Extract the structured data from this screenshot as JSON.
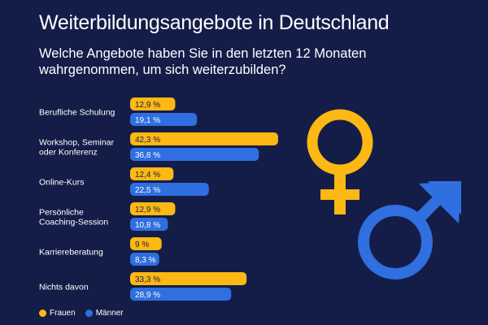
{
  "title": "Weiterbildungsangebote in Deutschland",
  "subtitle": "Welche Angebote haben Sie in den letzten 12 Monaten wahrgenommen, um sich weiterzubilden?",
  "colors": {
    "background": "#141d48",
    "frauen": "#fdb813",
    "maenner": "#2f6fe0"
  },
  "chart_data": {
    "type": "bar",
    "orientation": "horizontal",
    "categories": [
      "Berufliche Schulung",
      "Workshop, Seminar oder Konferenz",
      "Online-Kurs",
      "Persönliche Coaching-Session",
      "Karriereberatung",
      "Nichts davon"
    ],
    "category_lines": [
      [
        "Berufliche Schulung"
      ],
      [
        "Workshop, Seminar",
        "oder Konferenz"
      ],
      [
        "Online-Kurs"
      ],
      [
        "Persönliche",
        "Coaching-Session"
      ],
      [
        "Karriereberatung"
      ],
      [
        "Nichts davon"
      ]
    ],
    "series": [
      {
        "name": "Frauen",
        "values": [
          12.9,
          42.3,
          12.4,
          12.9,
          9,
          33.3
        ],
        "labels": [
          "12,9 %",
          "42,3 %",
          "12,4 %",
          "12,9 %",
          "9 %",
          "33,3 %"
        ]
      },
      {
        "name": "Männer",
        "values": [
          19.1,
          36.8,
          22.5,
          10.8,
          8.3,
          28.9
        ],
        "labels": [
          "19,1 %",
          "36,8 %",
          "22,5 %",
          "10,8 %",
          "8,3 %",
          "28,9 %"
        ]
      }
    ],
    "legend": "bottom-left",
    "grid": false
  },
  "icons": [
    "female-symbol-icon",
    "male-symbol-icon"
  ]
}
